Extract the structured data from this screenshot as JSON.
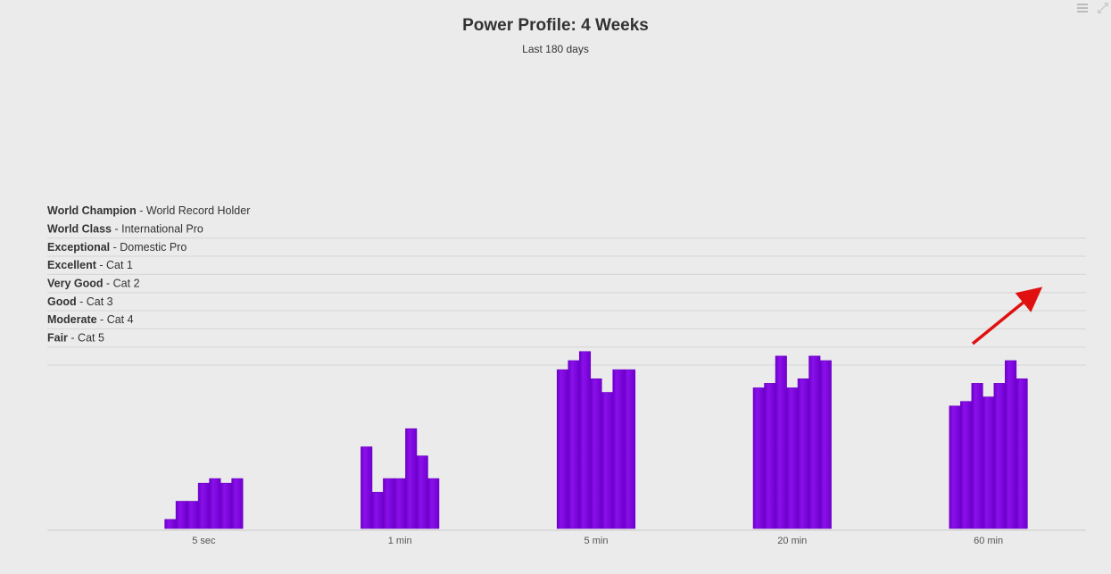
{
  "chart_data": {
    "type": "bar",
    "title": "Power Profile: 4 Weeks",
    "subtitle": "Last 180 days",
    "categories": [
      "5 sec",
      "1 min",
      "5 min",
      "20 min",
      "60 min"
    ],
    "bars_per_category": 7,
    "values": [
      [
        0.5,
        1.5,
        1.5,
        2.5,
        2.75,
        2.5,
        2.75
      ],
      [
        4.5,
        2.0,
        2.75,
        2.75,
        5.5,
        4.0,
        2.75
      ],
      [
        8.75,
        9.25,
        9.75,
        8.25,
        7.5,
        8.75,
        8.75
      ],
      [
        7.75,
        8.0,
        9.5,
        7.75,
        8.25,
        9.5,
        9.25
      ],
      [
        6.75,
        7.0,
        8.0,
        7.25,
        8.0,
        9.25,
        8.25
      ]
    ],
    "bands": [
      {
        "level": "World Champion",
        "desc": "World Record Holder"
      },
      {
        "level": "World Class",
        "desc": "International Pro"
      },
      {
        "level": "Exceptional",
        "desc": "Domestic Pro"
      },
      {
        "level": "Excellent",
        "desc": "Cat 1"
      },
      {
        "level": "Very Good",
        "desc": "Cat 2"
      },
      {
        "level": "Good",
        "desc": "Cat 3"
      },
      {
        "level": "Moderate",
        "desc": "Cat 4"
      },
      {
        "level": "Fair",
        "desc": "Cat 5"
      }
    ],
    "ylim": [
      0,
      22
    ],
    "bar_color": "#8000e0",
    "bar_edge_color": "#6a00c0",
    "grid_color": "#d6d6d6",
    "grid": true,
    "legend": "none"
  },
  "annotation": {
    "type": "arrow",
    "color": "#e01010"
  },
  "icons": {
    "menu": "menu-icon",
    "expand": "expand-icon"
  }
}
